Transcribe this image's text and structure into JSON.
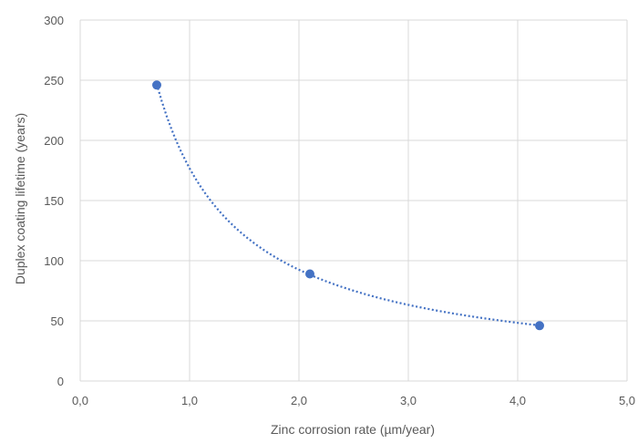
{
  "chart_data": {
    "type": "scatter",
    "title": "",
    "xlabel": "Zinc corrosion rate (µm/year)",
    "ylabel": "Duplex coating lifetime (years)",
    "xlim": [
      0,
      5
    ],
    "ylim": [
      0,
      300
    ],
    "x_ticks": [
      0,
      1,
      2,
      3,
      4,
      5
    ],
    "x_tick_labels": [
      "0,0",
      "1,0",
      "2,0",
      "3,0",
      "4,0",
      "5,0"
    ],
    "y_ticks": [
      0,
      50,
      100,
      150,
      200,
      250,
      300
    ],
    "y_tick_labels": [
      "0",
      "50",
      "100",
      "150",
      "200",
      "250",
      "300"
    ],
    "grid": true,
    "legend": "none",
    "series": [
      {
        "x": [
          0.7,
          2.1,
          4.2
        ],
        "y": [
          246,
          89,
          46
        ],
        "color": "#4472C4",
        "trendline": "power, dotted"
      }
    ]
  }
}
